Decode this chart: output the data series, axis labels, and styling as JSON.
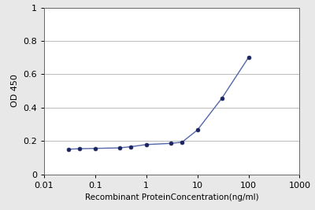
{
  "x_data": [
    0.03,
    0.05,
    0.1,
    0.3,
    0.5,
    1.0,
    3.0,
    5.0,
    10.0,
    30.0,
    100.0
  ],
  "y_data": [
    0.15,
    0.153,
    0.155,
    0.158,
    0.165,
    0.178,
    0.185,
    0.192,
    0.265,
    0.455,
    0.7
  ],
  "xlabel": "Recombinant ProteinConcentration(ng/ml)",
  "ylabel": "OD 450",
  "xlim": [
    0.01,
    1000
  ],
  "ylim": [
    0,
    1.0
  ],
  "yticks": [
    0,
    0.2,
    0.4,
    0.6,
    0.8,
    1.0
  ],
  "ytick_labels": [
    "0",
    "0.2",
    "0.4",
    "0.6",
    "0.8",
    "1"
  ],
  "xticks": [
    0.01,
    0.1,
    1,
    10,
    100,
    1000
  ],
  "xtick_labels": [
    "0.01",
    "0.1",
    "1",
    "10",
    "100",
    "1000"
  ],
  "line_color": "#5566aa",
  "marker_color": "#1a2560",
  "fig_bg_color": "#e8e8e8",
  "plot_bg_color": "#ffffff",
  "grid_color": "#bbbbbb",
  "xlabel_fontsize": 7.5,
  "ylabel_fontsize": 8,
  "tick_fontsize": 8
}
